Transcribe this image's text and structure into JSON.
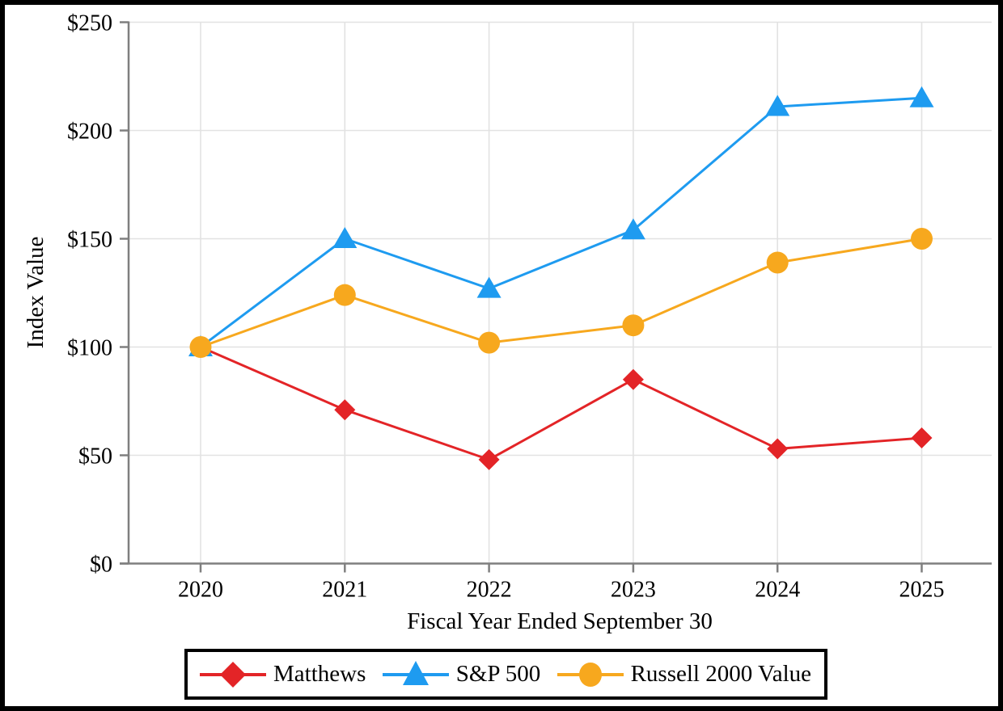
{
  "chart_data": {
    "type": "line",
    "title": "",
    "xlabel": "Fiscal Year Ended September 30",
    "ylabel": "Index Value",
    "categories": [
      "2020",
      "2021",
      "2022",
      "2023",
      "2024",
      "2025"
    ],
    "y_ticks": [
      {
        "label": "$0",
        "value": 0
      },
      {
        "label": "$50",
        "value": 50
      },
      {
        "label": "$100",
        "value": 100
      },
      {
        "label": "$150",
        "value": 150
      },
      {
        "label": "$200",
        "value": 200
      },
      {
        "label": "$250",
        "value": 250
      }
    ],
    "ylim": [
      0,
      250
    ],
    "grid": true,
    "legend_position": "bottom",
    "series": [
      {
        "name": "Matthews",
        "marker": "diamond",
        "color": "#E32427",
        "values": [
          100,
          71,
          48,
          85,
          53,
          58
        ]
      },
      {
        "name": "S&P 500",
        "marker": "triangle",
        "color": "#1E9BF0",
        "values": [
          100,
          150,
          127,
          154,
          211,
          215
        ]
      },
      {
        "name": "Russell 2000 Value",
        "marker": "circle",
        "color": "#F7A81E",
        "values": [
          100,
          124,
          102,
          110,
          139,
          150
        ]
      }
    ]
  },
  "style_colors": {
    "axis": "#7f7f7f",
    "grid": "#e2e2e2",
    "frame": "#000000",
    "text": "#000000"
  }
}
